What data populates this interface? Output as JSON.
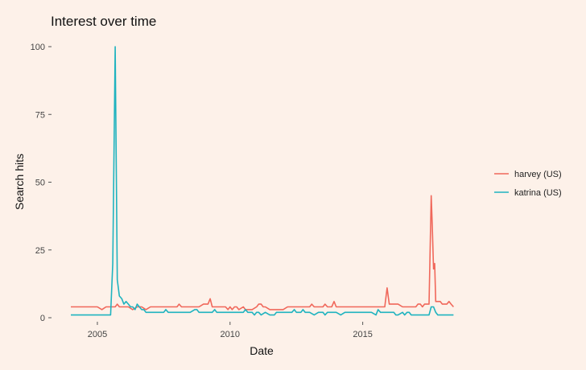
{
  "chart_data": {
    "type": "line",
    "title": "Interest over time",
    "xlabel": "Date",
    "ylabel": "Search hits",
    "x_range": [
      2004.0,
      2018.5
    ],
    "ylim": [
      0,
      100
    ],
    "x_ticks": [
      2005,
      2010,
      2015
    ],
    "x_tick_labels": [
      "2005",
      "2010",
      "2015"
    ],
    "y_ticks": [
      0,
      25,
      50,
      75,
      100
    ],
    "y_tick_labels": [
      "0",
      "25",
      "50",
      "75",
      "100"
    ],
    "grid": false,
    "legend_position": "right",
    "series": [
      {
        "name": "harvey (US)",
        "color": "#f0685b",
        "points": [
          [
            2004.0,
            4
          ],
          [
            2004.17,
            4
          ],
          [
            2004.33,
            4
          ],
          [
            2004.5,
            4
          ],
          [
            2004.67,
            4
          ],
          [
            2004.83,
            4
          ],
          [
            2005.0,
            4
          ],
          [
            2005.17,
            3
          ],
          [
            2005.33,
            4
          ],
          [
            2005.5,
            4
          ],
          [
            2005.67,
            4
          ],
          [
            2005.75,
            5
          ],
          [
            2005.83,
            4
          ],
          [
            2006.0,
            4
          ],
          [
            2006.17,
            4
          ],
          [
            2006.33,
            3
          ],
          [
            2006.5,
            4
          ],
          [
            2006.67,
            4
          ],
          [
            2006.83,
            3
          ],
          [
            2007.0,
            4
          ],
          [
            2007.17,
            4
          ],
          [
            2007.33,
            4
          ],
          [
            2007.5,
            4
          ],
          [
            2007.67,
            4
          ],
          [
            2007.83,
            4
          ],
          [
            2008.0,
            4
          ],
          [
            2008.08,
            5
          ],
          [
            2008.17,
            4
          ],
          [
            2008.33,
            4
          ],
          [
            2008.5,
            4
          ],
          [
            2008.67,
            4
          ],
          [
            2008.83,
            4
          ],
          [
            2009.0,
            5
          ],
          [
            2009.08,
            5
          ],
          [
            2009.17,
            5
          ],
          [
            2009.25,
            7
          ],
          [
            2009.33,
            4
          ],
          [
            2009.5,
            4
          ],
          [
            2009.67,
            4
          ],
          [
            2009.83,
            4
          ],
          [
            2009.92,
            3
          ],
          [
            2010.0,
            4
          ],
          [
            2010.08,
            3
          ],
          [
            2010.17,
            4
          ],
          [
            2010.25,
            4
          ],
          [
            2010.33,
            3
          ],
          [
            2010.5,
            4
          ],
          [
            2010.58,
            3
          ],
          [
            2010.67,
            3
          ],
          [
            2010.83,
            3
          ],
          [
            2011.0,
            4
          ],
          [
            2011.08,
            5
          ],
          [
            2011.17,
            5
          ],
          [
            2011.25,
            4
          ],
          [
            2011.33,
            4
          ],
          [
            2011.5,
            3
          ],
          [
            2011.67,
            3
          ],
          [
            2011.83,
            3
          ],
          [
            2012.0,
            3
          ],
          [
            2012.17,
            4
          ],
          [
            2012.33,
            4
          ],
          [
            2012.5,
            4
          ],
          [
            2012.67,
            4
          ],
          [
            2012.83,
            4
          ],
          [
            2013.0,
            4
          ],
          [
            2013.08,
            5
          ],
          [
            2013.17,
            4
          ],
          [
            2013.33,
            4
          ],
          [
            2013.5,
            4
          ],
          [
            2013.58,
            5
          ],
          [
            2013.67,
            4
          ],
          [
            2013.83,
            4
          ],
          [
            2013.92,
            6
          ],
          [
            2014.0,
            4
          ],
          [
            2014.17,
            4
          ],
          [
            2014.33,
            4
          ],
          [
            2014.5,
            4
          ],
          [
            2014.67,
            4
          ],
          [
            2014.83,
            4
          ],
          [
            2015.0,
            4
          ],
          [
            2015.17,
            4
          ],
          [
            2015.33,
            4
          ],
          [
            2015.5,
            4
          ],
          [
            2015.67,
            4
          ],
          [
            2015.83,
            4
          ],
          [
            2015.92,
            11
          ],
          [
            2016.0,
            5
          ],
          [
            2016.17,
            5
          ],
          [
            2016.33,
            5
          ],
          [
            2016.5,
            4
          ],
          [
            2016.67,
            4
          ],
          [
            2016.83,
            4
          ],
          [
            2017.0,
            4
          ],
          [
            2017.08,
            5
          ],
          [
            2017.17,
            5
          ],
          [
            2017.25,
            4
          ],
          [
            2017.33,
            5
          ],
          [
            2017.42,
            5
          ],
          [
            2017.5,
            5
          ],
          [
            2017.58,
            45
          ],
          [
            2017.62,
            34
          ],
          [
            2017.67,
            18
          ],
          [
            2017.71,
            20
          ],
          [
            2017.75,
            6
          ],
          [
            2017.83,
            6
          ],
          [
            2017.92,
            6
          ],
          [
            2018.0,
            5
          ],
          [
            2018.08,
            5
          ],
          [
            2018.17,
            5
          ],
          [
            2018.25,
            6
          ],
          [
            2018.33,
            5
          ],
          [
            2018.42,
            4
          ]
        ]
      },
      {
        "name": "katrina (US)",
        "color": "#1fb3bf",
        "points": [
          [
            2004.0,
            1
          ],
          [
            2004.17,
            1
          ],
          [
            2004.33,
            1
          ],
          [
            2004.5,
            1
          ],
          [
            2004.67,
            1
          ],
          [
            2004.83,
            1
          ],
          [
            2005.0,
            1
          ],
          [
            2005.17,
            1
          ],
          [
            2005.33,
            1
          ],
          [
            2005.5,
            1
          ],
          [
            2005.58,
            20
          ],
          [
            2005.67,
            100
          ],
          [
            2005.75,
            14
          ],
          [
            2005.83,
            8
          ],
          [
            2005.92,
            7
          ],
          [
            2006.0,
            5
          ],
          [
            2006.08,
            6
          ],
          [
            2006.17,
            5
          ],
          [
            2006.25,
            4
          ],
          [
            2006.33,
            4
          ],
          [
            2006.42,
            3
          ],
          [
            2006.5,
            5
          ],
          [
            2006.58,
            4
          ],
          [
            2006.67,
            3
          ],
          [
            2006.75,
            3
          ],
          [
            2006.83,
            2
          ],
          [
            2007.0,
            2
          ],
          [
            2007.17,
            2
          ],
          [
            2007.33,
            2
          ],
          [
            2007.5,
            2
          ],
          [
            2007.58,
            3
          ],
          [
            2007.67,
            2
          ],
          [
            2007.83,
            2
          ],
          [
            2008.0,
            2
          ],
          [
            2008.17,
            2
          ],
          [
            2008.33,
            2
          ],
          [
            2008.5,
            2
          ],
          [
            2008.67,
            3
          ],
          [
            2008.75,
            3
          ],
          [
            2008.83,
            2
          ],
          [
            2009.0,
            2
          ],
          [
            2009.17,
            2
          ],
          [
            2009.33,
            2
          ],
          [
            2009.42,
            3
          ],
          [
            2009.5,
            2
          ],
          [
            2009.67,
            2
          ],
          [
            2009.83,
            2
          ],
          [
            2010.0,
            2
          ],
          [
            2010.17,
            2
          ],
          [
            2010.33,
            2
          ],
          [
            2010.5,
            2
          ],
          [
            2010.58,
            3
          ],
          [
            2010.67,
            2
          ],
          [
            2010.83,
            2
          ],
          [
            2010.92,
            1
          ],
          [
            2011.0,
            2
          ],
          [
            2011.08,
            2
          ],
          [
            2011.17,
            1
          ],
          [
            2011.33,
            2
          ],
          [
            2011.5,
            1
          ],
          [
            2011.67,
            1
          ],
          [
            2011.75,
            2
          ],
          [
            2011.83,
            2
          ],
          [
            2012.0,
            2
          ],
          [
            2012.17,
            2
          ],
          [
            2012.33,
            2
          ],
          [
            2012.42,
            3
          ],
          [
            2012.5,
            2
          ],
          [
            2012.67,
            2
          ],
          [
            2012.75,
            3
          ],
          [
            2012.83,
            2
          ],
          [
            2013.0,
            2
          ],
          [
            2013.17,
            1
          ],
          [
            2013.33,
            2
          ],
          [
            2013.5,
            2
          ],
          [
            2013.58,
            1
          ],
          [
            2013.67,
            2
          ],
          [
            2013.83,
            2
          ],
          [
            2014.0,
            2
          ],
          [
            2014.17,
            1
          ],
          [
            2014.33,
            2
          ],
          [
            2014.5,
            2
          ],
          [
            2014.67,
            2
          ],
          [
            2014.83,
            2
          ],
          [
            2015.0,
            2
          ],
          [
            2015.17,
            2
          ],
          [
            2015.33,
            2
          ],
          [
            2015.5,
            1
          ],
          [
            2015.58,
            3
          ],
          [
            2015.67,
            2
          ],
          [
            2015.83,
            2
          ],
          [
            2016.0,
            2
          ],
          [
            2016.17,
            2
          ],
          [
            2016.25,
            1
          ],
          [
            2016.33,
            1
          ],
          [
            2016.5,
            2
          ],
          [
            2016.58,
            1
          ],
          [
            2016.67,
            2
          ],
          [
            2016.75,
            2
          ],
          [
            2016.83,
            1
          ],
          [
            2017.0,
            1
          ],
          [
            2017.17,
            1
          ],
          [
            2017.33,
            1
          ],
          [
            2017.5,
            1
          ],
          [
            2017.58,
            4
          ],
          [
            2017.67,
            4
          ],
          [
            2017.75,
            2
          ],
          [
            2017.83,
            1
          ],
          [
            2018.0,
            1
          ],
          [
            2018.17,
            1
          ],
          [
            2018.33,
            1
          ],
          [
            2018.42,
            1
          ]
        ]
      }
    ]
  }
}
